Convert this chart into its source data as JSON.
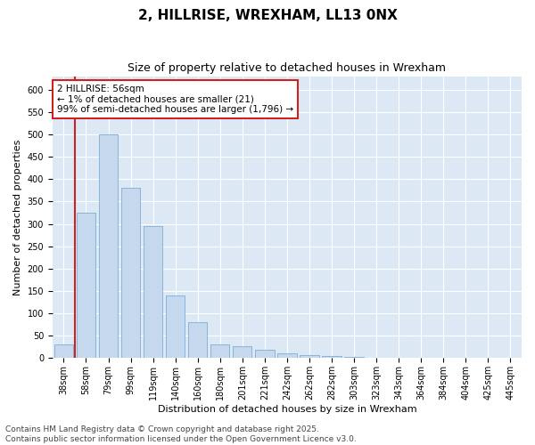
{
  "title": "2, HILLRISE, WREXHAM, LL13 0NX",
  "subtitle": "Size of property relative to detached houses in Wrexham",
  "xlabel": "Distribution of detached houses by size in Wrexham",
  "ylabel": "Number of detached properties",
  "categories": [
    "38sqm",
    "58sqm",
    "79sqm",
    "99sqm",
    "119sqm",
    "140sqm",
    "160sqm",
    "180sqm",
    "201sqm",
    "221sqm",
    "242sqm",
    "262sqm",
    "282sqm",
    "303sqm",
    "323sqm",
    "343sqm",
    "364sqm",
    "384sqm",
    "404sqm",
    "425sqm",
    "445sqm"
  ],
  "values": [
    30,
    325,
    500,
    380,
    295,
    140,
    80,
    30,
    27,
    18,
    10,
    6,
    4,
    3,
    1,
    1,
    1,
    0,
    0,
    0,
    1
  ],
  "bar_color": "#c5d8ed",
  "bar_edge_color": "#7aadd4",
  "highlight_color": "#cc2222",
  "annotation_text": "2 HILLRISE: 56sqm\n← 1% of detached houses are smaller (21)\n99% of semi-detached houses are larger (1,796) →",
  "annotation_box_facecolor": "#ffffff",
  "annotation_box_edgecolor": "#cc2222",
  "ylim": [
    0,
    630
  ],
  "yticks": [
    0,
    50,
    100,
    150,
    200,
    250,
    300,
    350,
    400,
    450,
    500,
    550,
    600
  ],
  "plot_bg_color": "#dce9f5",
  "footer": "Contains HM Land Registry data © Crown copyright and database right 2025.\nContains public sector information licensed under the Open Government Licence v3.0.",
  "title_fontsize": 11,
  "subtitle_fontsize": 9,
  "xlabel_fontsize": 8,
  "ylabel_fontsize": 8,
  "tick_fontsize": 7,
  "footer_fontsize": 6.5,
  "annotation_fontsize": 7.5
}
